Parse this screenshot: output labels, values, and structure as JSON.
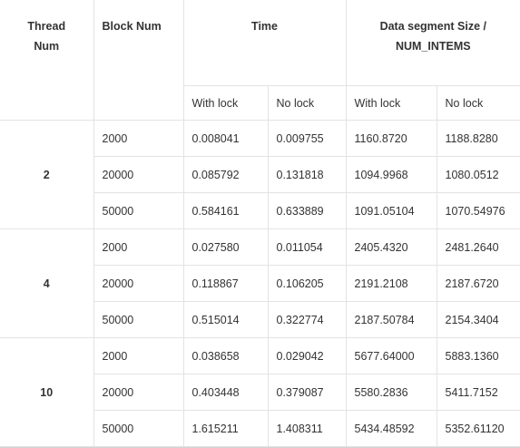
{
  "header": {
    "thread_num": "Thread\nNum",
    "thread_num_line1": "Thread",
    "thread_num_line2": "Num",
    "block_num": "Block Num",
    "time": "Time",
    "data_seg_line1": "Data segment Size /",
    "data_seg_line2": "NUM_INTEMS",
    "sub": [
      "With lock",
      "No lock",
      "With lock",
      "No lock"
    ]
  },
  "groups": [
    {
      "thread": "2",
      "rows": [
        {
          "block": "2000",
          "time_lock": "0.008041",
          "time_nolock": "0.009755",
          "seg_lock": "1160.8720",
          "seg_nolock": "1188.8280"
        },
        {
          "block": "20000",
          "time_lock": "0.085792",
          "time_nolock": "0.131818",
          "seg_lock": "1094.9968",
          "seg_nolock": "1080.0512"
        },
        {
          "block": "50000",
          "time_lock": " 0.584161",
          "time_nolock": "0.633889",
          "seg_lock": "1091.05104",
          "seg_nolock": "1070.54976"
        }
      ]
    },
    {
      "thread": "4",
      "rows": [
        {
          "block": "2000",
          "time_lock": "0.027580",
          "time_nolock": "0.011054",
          "seg_lock": "2405.4320",
          "seg_nolock": "2481.2640"
        },
        {
          "block": "20000",
          "time_lock": "0.118867",
          "time_nolock": "0.106205",
          "seg_lock": "2191.2108",
          "seg_nolock": "2187.6720"
        },
        {
          "block": "50000",
          "time_lock": "0.515014",
          "time_nolock": "0.322774",
          "seg_lock": "2187.50784",
          "seg_nolock": "2154.3404"
        }
      ]
    },
    {
      "thread": "10",
      "rows": [
        {
          "block": "2000",
          "time_lock": "0.038658",
          "time_nolock": "0.029042",
          "seg_lock": "5677.64000",
          "seg_nolock": "5883.1360"
        },
        {
          "block": "20000",
          "time_lock": "0.403448",
          "time_nolock": "0.379087",
          "seg_lock": "5580.2836",
          "seg_nolock": "5411.7152"
        },
        {
          "block": "50000",
          "time_lock": "1.615211",
          "time_nolock": "1.408311",
          "seg_lock": "5434.48592",
          "seg_nolock": "5352.61120"
        }
      ]
    }
  ]
}
